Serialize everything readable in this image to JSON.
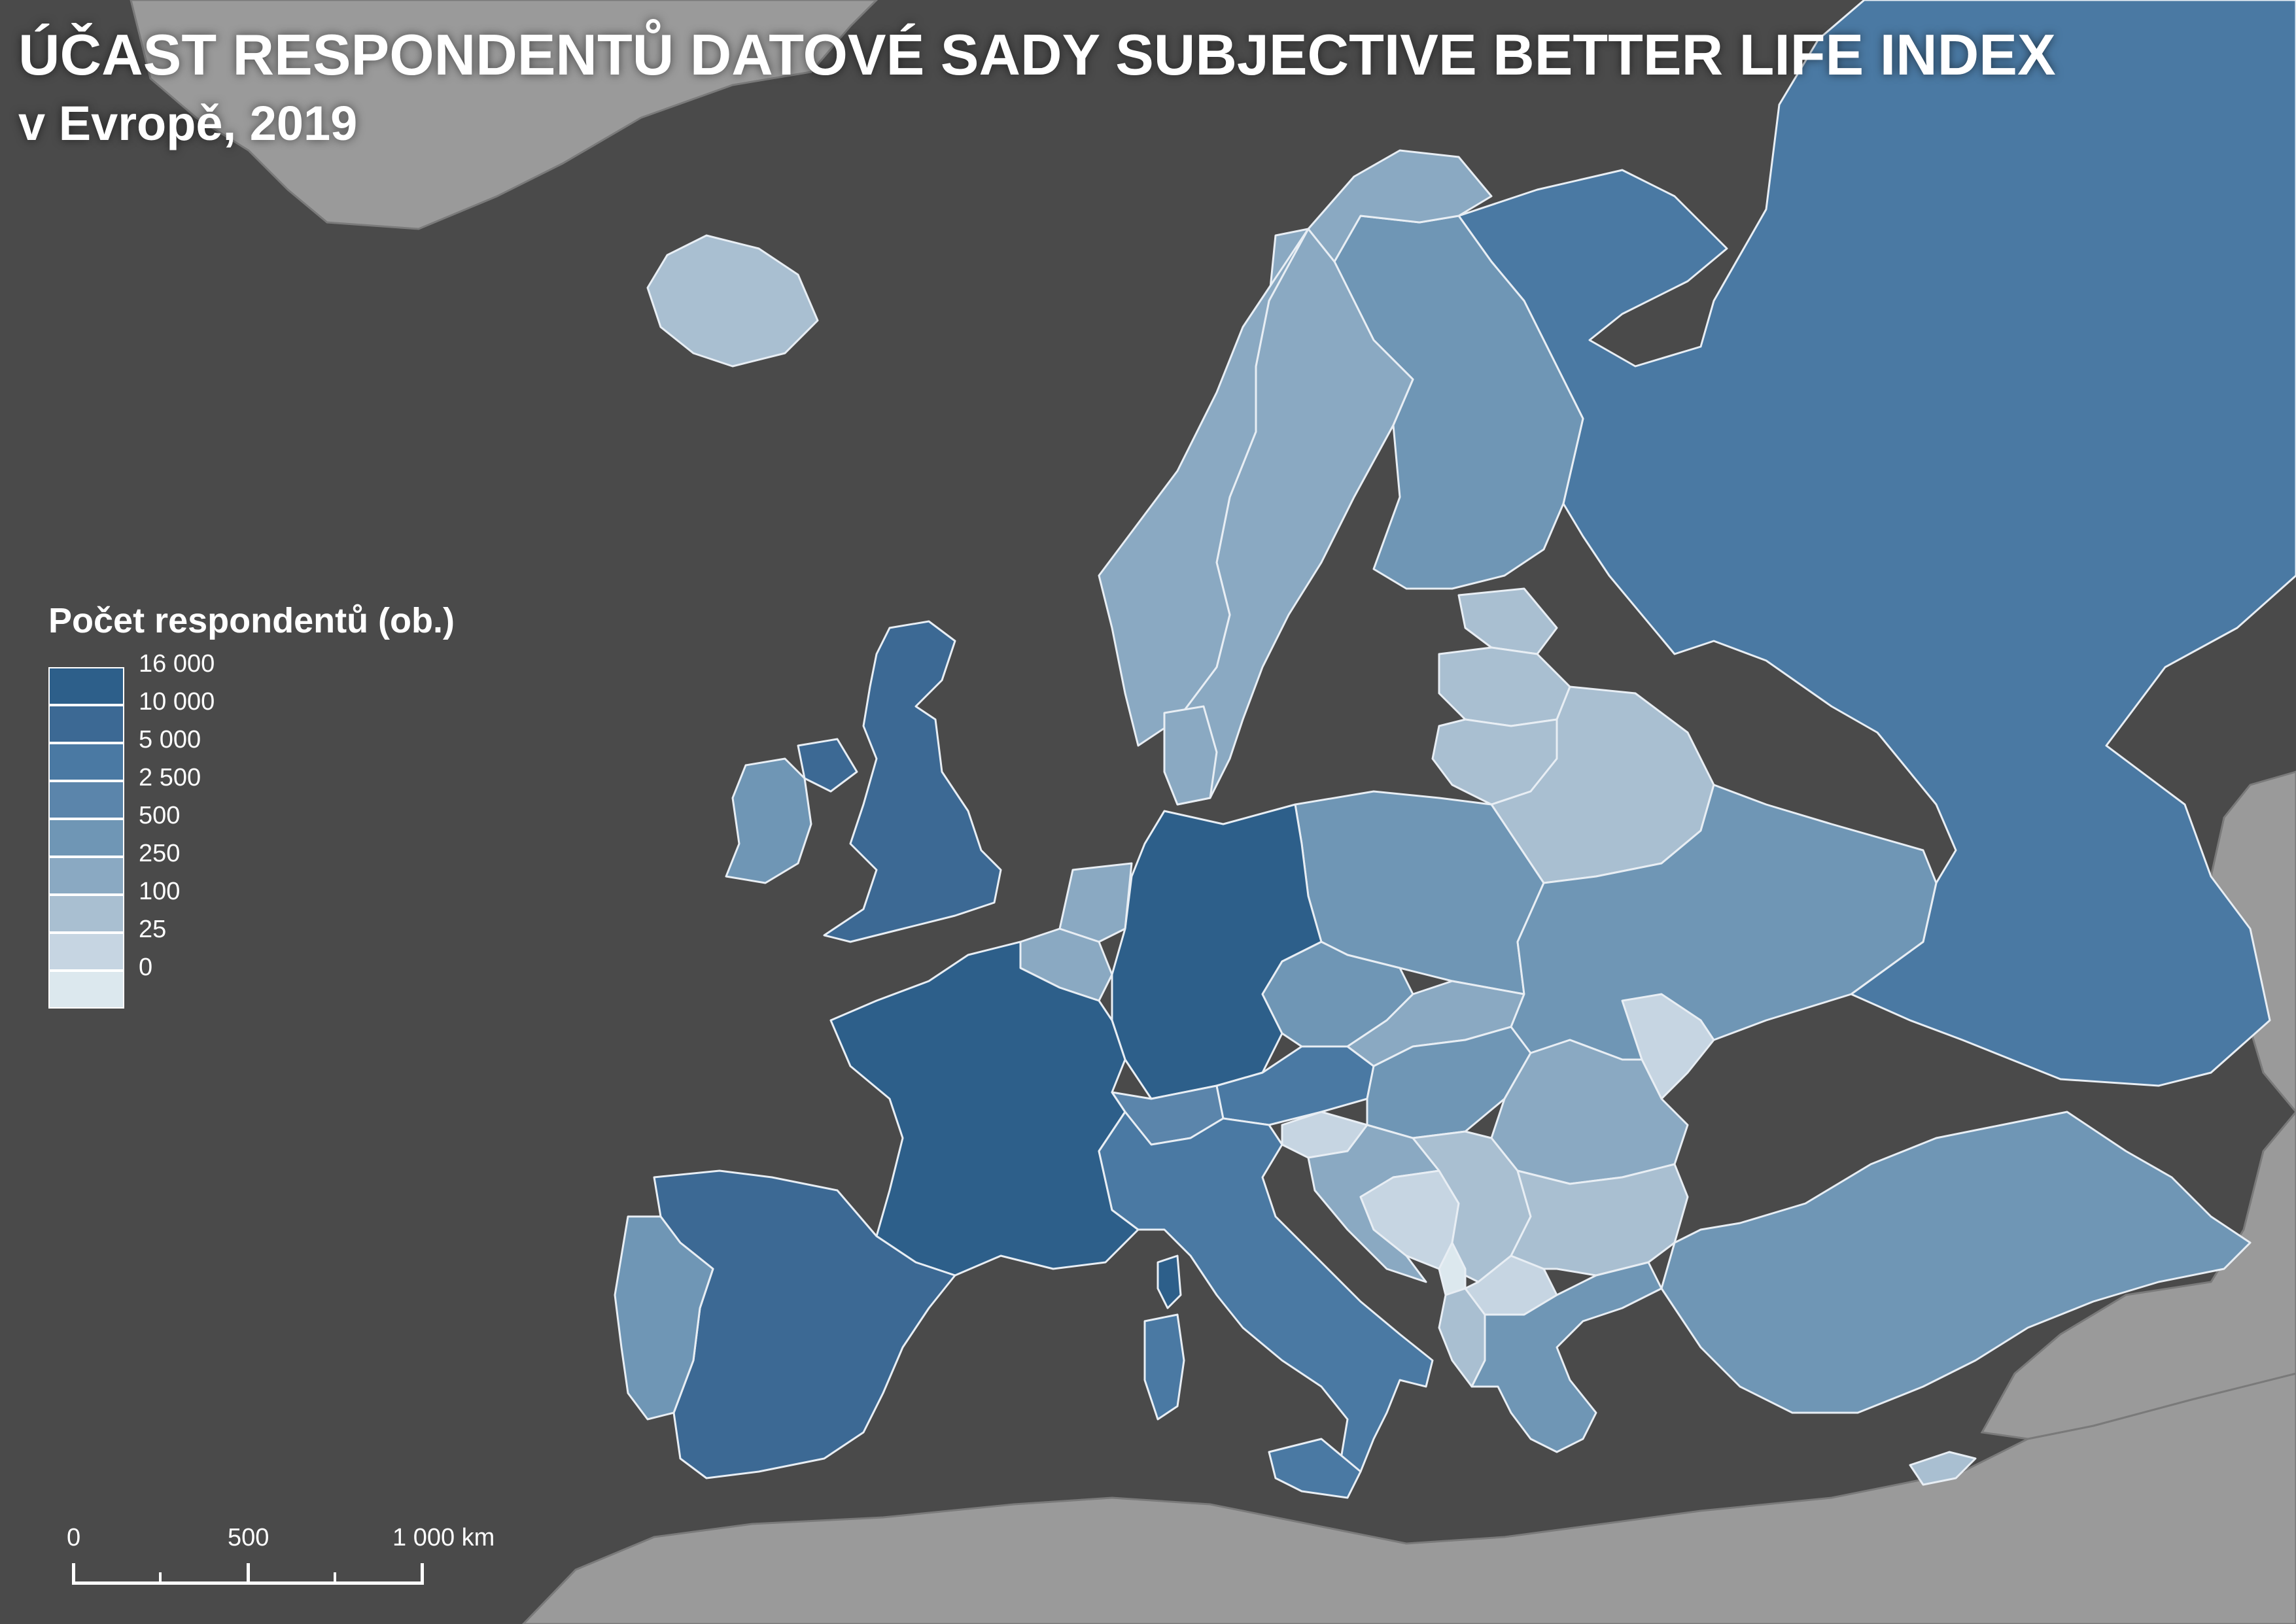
{
  "title": "ÚČAST RESPONDENTŮ DATOVÉ SADY SUBJECTIVE BETTER LIFE INDEX",
  "subtitle": "v Evropě, 2019",
  "legend": {
    "title": "Počet respondentů (ob.)",
    "items": [
      {
        "label": "16 000",
        "color": "#2d5f8a"
      },
      {
        "label": "10 000",
        "color": "#3c6994"
      },
      {
        "label": "5 000",
        "color": "#4a79a3"
      },
      {
        "label": "2 500",
        "color": "#5b85ab"
      },
      {
        "label": "500",
        "color": "#6f96b5"
      },
      {
        "label": "250",
        "color": "#8aa9c2"
      },
      {
        "label": "100",
        "color": "#a9bfd1"
      },
      {
        "label": "25",
        "color": "#c6d5e2"
      },
      {
        "label": "0",
        "color": "#dce8ee"
      }
    ]
  },
  "scalebar": {
    "labels": [
      "0",
      "500",
      "1 000 km"
    ]
  },
  "colors": {
    "sea": "#4a4a4a",
    "outside_land": "#9a9a9a",
    "border": "#e8eef4"
  },
  "regions": [
    {
      "name": "Russia",
      "class": 2
    },
    {
      "name": "Germany",
      "class": 0
    },
    {
      "name": "France",
      "class": 0
    },
    {
      "name": "Spain",
      "class": 1
    },
    {
      "name": "United Kingdom",
      "class": 1
    },
    {
      "name": "Italy",
      "class": 2
    },
    {
      "name": "Ireland",
      "class": 4
    },
    {
      "name": "Portugal",
      "class": 4
    },
    {
      "name": "Norway",
      "class": 5
    },
    {
      "name": "Sweden",
      "class": 5
    },
    {
      "name": "Finland",
      "class": 4
    },
    {
      "name": "Iceland",
      "class": 6
    },
    {
      "name": "Poland",
      "class": 4
    },
    {
      "name": "Ukraine",
      "class": 4
    },
    {
      "name": "Belarus",
      "class": 6
    },
    {
      "name": "Lithuania",
      "class": 6
    },
    {
      "name": "Latvia",
      "class": 6
    },
    {
      "name": "Estonia",
      "class": 6
    },
    {
      "name": "Romania",
      "class": 5
    },
    {
      "name": "Bulgaria",
      "class": 6
    },
    {
      "name": "Greece",
      "class": 4
    },
    {
      "name": "Turkey",
      "class": 4
    },
    {
      "name": "Austria",
      "class": 2
    },
    {
      "name": "Switzerland",
      "class": 3
    },
    {
      "name": "Czechia",
      "class": 4
    },
    {
      "name": "Slovakia",
      "class": 5
    },
    {
      "name": "Hungary",
      "class": 4
    },
    {
      "name": "Netherlands",
      "class": 5
    },
    {
      "name": "Belgium",
      "class": 5
    },
    {
      "name": "Denmark",
      "class": 5
    },
    {
      "name": "Slovenia",
      "class": 7
    },
    {
      "name": "Croatia",
      "class": 5
    },
    {
      "name": "Serbia",
      "class": 6
    },
    {
      "name": "Bosnia and Herzegovina",
      "class": 7
    },
    {
      "name": "Montenegro",
      "class": 8
    },
    {
      "name": "North Macedonia",
      "class": 7
    },
    {
      "name": "Albania",
      "class": 6
    },
    {
      "name": "Moldova",
      "class": 7
    },
    {
      "name": "Cyprus",
      "class": 6
    },
    {
      "name": "Corsica",
      "class": 0
    },
    {
      "name": "Sardinia",
      "class": 2
    },
    {
      "name": "Sicily",
      "class": 2
    }
  ]
}
